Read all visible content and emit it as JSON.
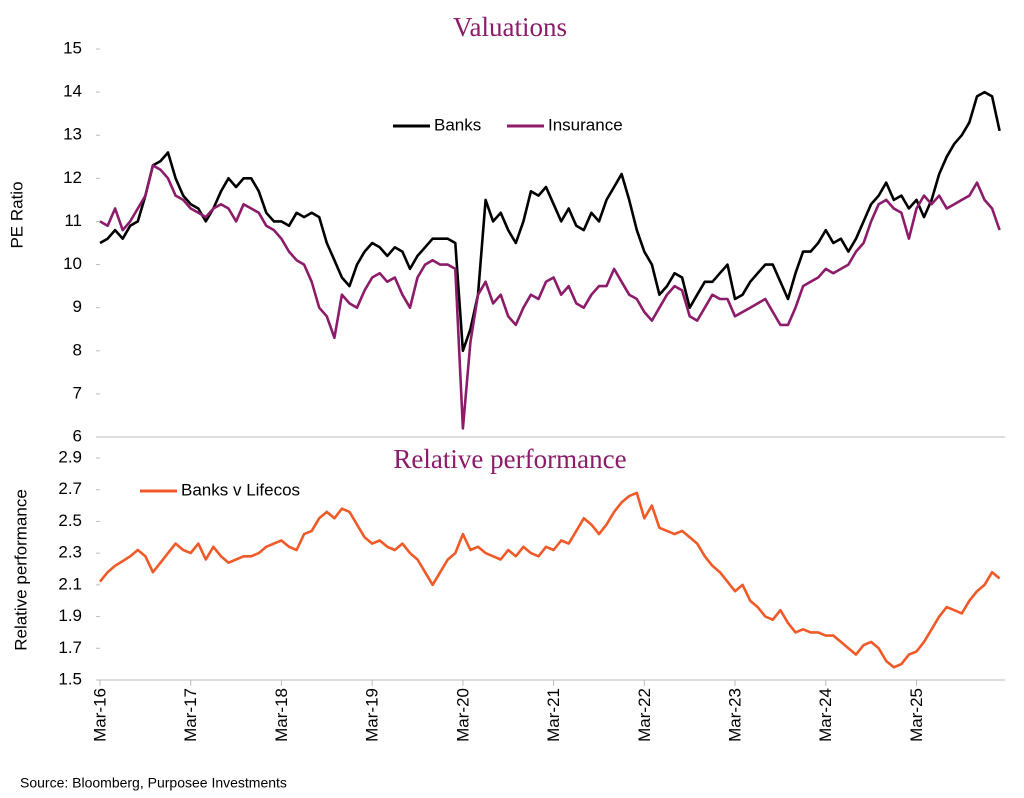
{
  "chart_data": [
    {
      "type": "line",
      "title": "Valuations",
      "y_label": "PE Ratio",
      "legend": "top",
      "ylim": [
        6,
        15
      ],
      "yticks": [
        6,
        7,
        8,
        9,
        10,
        11,
        12,
        13,
        14,
        15
      ],
      "series": [
        {
          "name": "Banks",
          "color": "#000000",
          "values": [
            10.5,
            10.6,
            10.8,
            10.6,
            10.9,
            11.0,
            11.6,
            12.3,
            12.4,
            12.6,
            12.0,
            11.6,
            11.4,
            11.3,
            11.0,
            11.3,
            11.7,
            12.0,
            11.8,
            12.0,
            12.0,
            11.7,
            11.2,
            11.0,
            11.0,
            10.9,
            11.2,
            11.1,
            11.2,
            11.1,
            10.5,
            10.1,
            9.7,
            9.5,
            10.0,
            10.3,
            10.5,
            10.4,
            10.2,
            10.4,
            10.3,
            9.9,
            10.2,
            10.4,
            10.6,
            10.6,
            10.6,
            10.5,
            8.0,
            8.5,
            9.3,
            11.5,
            11.0,
            11.2,
            10.8,
            10.5,
            11.0,
            11.7,
            11.6,
            11.8,
            11.4,
            11.0,
            11.3,
            10.9,
            10.8,
            11.2,
            11.0,
            11.5,
            11.8,
            12.1,
            11.5,
            10.8,
            10.3,
            10.0,
            9.3,
            9.5,
            9.8,
            9.7,
            9.0,
            9.3,
            9.6,
            9.6,
            9.8,
            10.0,
            9.2,
            9.3,
            9.6,
            9.8,
            10.0,
            10.0,
            9.6,
            9.2,
            9.8,
            10.3,
            10.3,
            10.5,
            10.8,
            10.5,
            10.6,
            10.3,
            10.6,
            11.0,
            11.4,
            11.6,
            11.9,
            11.5,
            11.6,
            11.3,
            11.5,
            11.1,
            11.5,
            12.1,
            12.5,
            12.8,
            13.0,
            13.3,
            13.9,
            14.0,
            13.9,
            13.1
          ]
        },
        {
          "name": "Insurance",
          "color": "#8c1b6a",
          "values": [
            11.0,
            10.9,
            11.3,
            10.8,
            11.0,
            11.3,
            11.6,
            12.3,
            12.2,
            12.0,
            11.6,
            11.5,
            11.3,
            11.2,
            11.1,
            11.3,
            11.4,
            11.3,
            11.0,
            11.4,
            11.3,
            11.2,
            10.9,
            10.8,
            10.6,
            10.3,
            10.1,
            10.0,
            9.6,
            9.0,
            8.8,
            8.3,
            9.3,
            9.1,
            9.0,
            9.4,
            9.7,
            9.8,
            9.6,
            9.7,
            9.3,
            9.0,
            9.7,
            10.0,
            10.1,
            10.0,
            10.0,
            9.9,
            6.2,
            8.2,
            9.3,
            9.6,
            9.1,
            9.3,
            8.8,
            8.6,
            9.0,
            9.3,
            9.2,
            9.6,
            9.7,
            9.3,
            9.5,
            9.1,
            9.0,
            9.3,
            9.5,
            9.5,
            9.9,
            9.6,
            9.3,
            9.2,
            8.9,
            8.7,
            9.0,
            9.3,
            9.5,
            9.4,
            8.8,
            8.7,
            9.0,
            9.3,
            9.2,
            9.2,
            8.8,
            8.9,
            9.0,
            9.1,
            9.2,
            8.9,
            8.6,
            8.6,
            9.0,
            9.5,
            9.6,
            9.7,
            9.9,
            9.8,
            9.9,
            10.0,
            10.3,
            10.5,
            11.0,
            11.4,
            11.5,
            11.3,
            11.2,
            10.6,
            11.3,
            11.6,
            11.4,
            11.6,
            11.3,
            11.4,
            11.5,
            11.6,
            11.9,
            11.5,
            11.3,
            10.8
          ]
        }
      ]
    },
    {
      "type": "line",
      "title": "Relative performance",
      "y_label": "Relative performance",
      "legend": "top-left",
      "ylim": [
        1.5,
        2.9
      ],
      "yticks": [
        1.5,
        1.7,
        1.9,
        2.1,
        2.3,
        2.5,
        2.7,
        2.9
      ],
      "categories": [
        "Mar-16",
        null,
        null,
        null,
        null,
        null,
        null,
        null,
        null,
        null,
        null,
        null,
        "Mar-17",
        null,
        null,
        null,
        null,
        null,
        null,
        null,
        null,
        null,
        null,
        null,
        "Mar-18",
        null,
        null,
        null,
        null,
        null,
        null,
        null,
        null,
        null,
        null,
        null,
        "Mar-19",
        null,
        null,
        null,
        null,
        null,
        null,
        null,
        null,
        null,
        null,
        null,
        "Mar-20",
        null,
        null,
        null,
        null,
        null,
        null,
        null,
        null,
        null,
        null,
        null,
        "Mar-21",
        null,
        null,
        null,
        null,
        null,
        null,
        null,
        null,
        null,
        null,
        null,
        "Mar-22",
        null,
        null,
        null,
        null,
        null,
        null,
        null,
        null,
        null,
        null,
        null,
        "Mar-23",
        null,
        null,
        null,
        null,
        null,
        null,
        null,
        null,
        null,
        null,
        null,
        "Mar-24",
        null,
        null,
        null,
        null,
        null,
        null,
        null,
        null,
        null,
        null,
        null,
        "Mar-25",
        null,
        null,
        null,
        null,
        null,
        null,
        null,
        null,
        null,
        null,
        null
      ],
      "series": [
        {
          "name": "Banks v Lifecos",
          "color": "#f05a28",
          "values": [
            2.12,
            2.18,
            2.22,
            2.25,
            2.28,
            2.32,
            2.28,
            2.18,
            2.24,
            2.3,
            2.36,
            2.32,
            2.3,
            2.36,
            2.26,
            2.34,
            2.28,
            2.24,
            2.26,
            2.28,
            2.28,
            2.3,
            2.34,
            2.36,
            2.38,
            2.34,
            2.32,
            2.42,
            2.44,
            2.52,
            2.56,
            2.52,
            2.58,
            2.56,
            2.48,
            2.4,
            2.36,
            2.38,
            2.34,
            2.32,
            2.36,
            2.3,
            2.26,
            2.18,
            2.1,
            2.18,
            2.26,
            2.3,
            2.42,
            2.32,
            2.34,
            2.3,
            2.28,
            2.26,
            2.32,
            2.28,
            2.34,
            2.3,
            2.28,
            2.34,
            2.32,
            2.38,
            2.36,
            2.44,
            2.52,
            2.48,
            2.42,
            2.48,
            2.56,
            2.62,
            2.66,
            2.68,
            2.52,
            2.6,
            2.46,
            2.44,
            2.42,
            2.44,
            2.4,
            2.36,
            2.28,
            2.22,
            2.18,
            2.12,
            2.06,
            2.1,
            2.0,
            1.96,
            1.9,
            1.88,
            1.94,
            1.86,
            1.8,
            1.82,
            1.8,
            1.8,
            1.78,
            1.78,
            1.74,
            1.7,
            1.66,
            1.72,
            1.74,
            1.7,
            1.62,
            1.58,
            1.6,
            1.66,
            1.68,
            1.74,
            1.82,
            1.9,
            1.96,
            1.94,
            1.92,
            2.0,
            2.06,
            2.1,
            2.18,
            2.14
          ]
        }
      ]
    }
  ],
  "source": "Source: Bloomberg, Purposee Investments"
}
